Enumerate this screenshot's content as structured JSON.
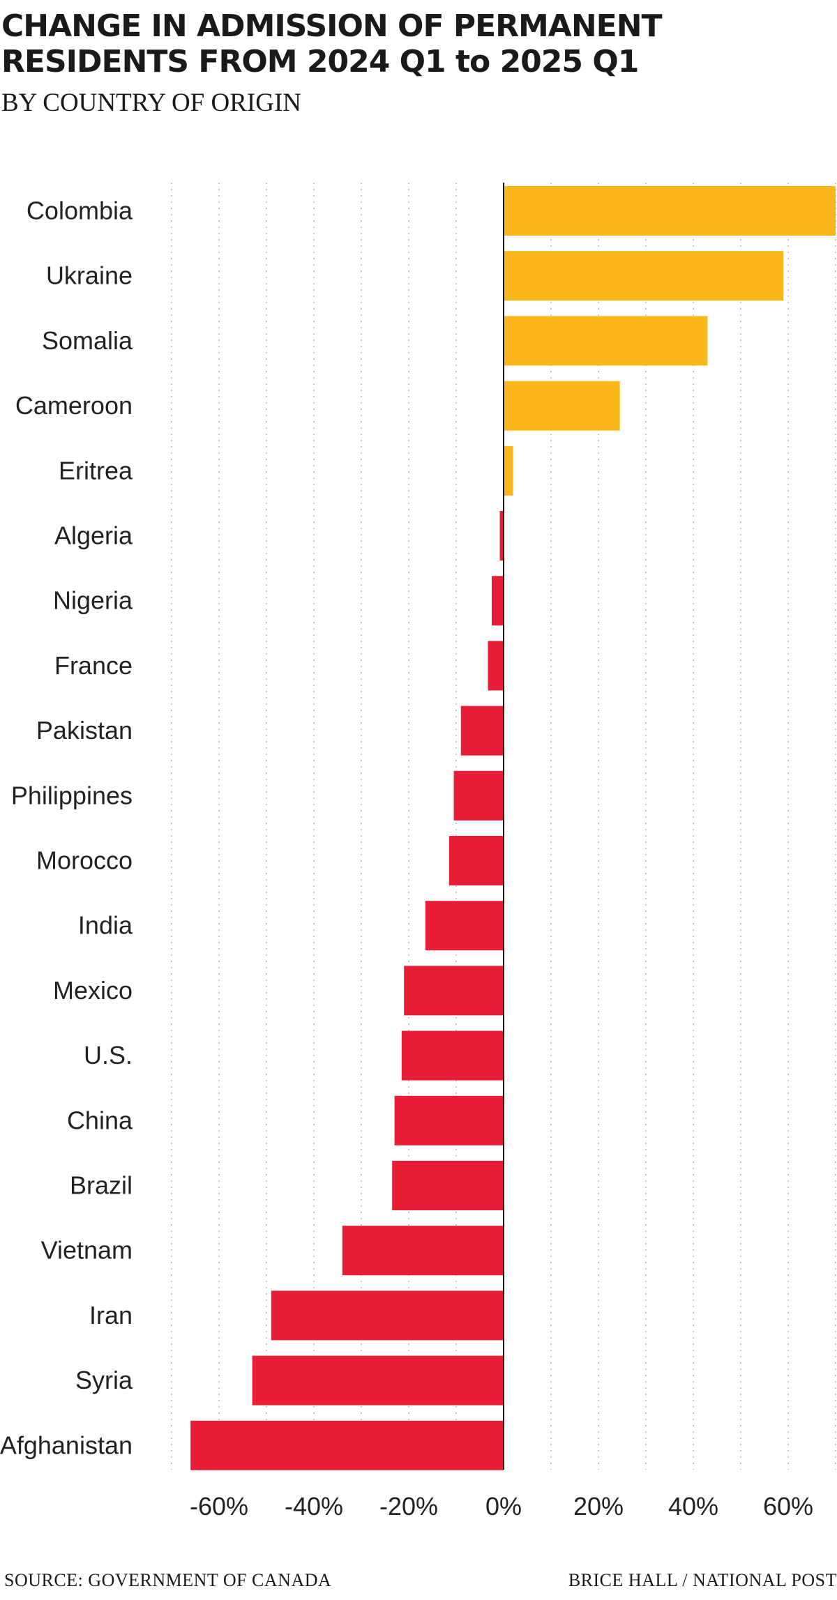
{
  "chart_data": {
    "type": "bar",
    "orientation": "horizontal",
    "title": "CHANGE IN ADMISSION OF PERMANENT RESIDENTS FROM 2024 Q1 to 2025 Q1",
    "subtitle": "BY COUNTRY OF ORIGIN",
    "categories": [
      "Colombia",
      "Ukraine",
      "Somalia",
      "Cameroon",
      "Eritrea",
      "Algeria",
      "Nigeria",
      "France",
      "Pakistan",
      "Philippines",
      "Morocco",
      "India",
      "Mexico",
      "U.S.",
      "China",
      "Brazil",
      "Vietnam",
      "Iran",
      "Syria",
      "Afghanistan"
    ],
    "values": [
      70,
      59,
      43,
      24.5,
      2,
      -0.8,
      -2.5,
      -3.3,
      -9,
      -10.5,
      -11.5,
      -16.5,
      -21,
      -21.5,
      -23,
      -23.5,
      -34,
      -49,
      -53,
      -66
    ],
    "xlim": [
      -70,
      70
    ],
    "xticks": [
      -60,
      -40,
      -20,
      0,
      20,
      40,
      60
    ],
    "xtick_labels": [
      "-60%",
      "-40%",
      "-20%",
      "0%",
      "20%",
      "40%",
      "60%"
    ],
    "gridlines_every": 10,
    "positive_color": "#fbb719",
    "negative_color": "#e81e36",
    "xlabel": "",
    "ylabel": ""
  },
  "footer": {
    "source": "SOURCE: GOVERNMENT OF CANADA",
    "credit": "BRICE HALL  / NATIONAL POST"
  }
}
